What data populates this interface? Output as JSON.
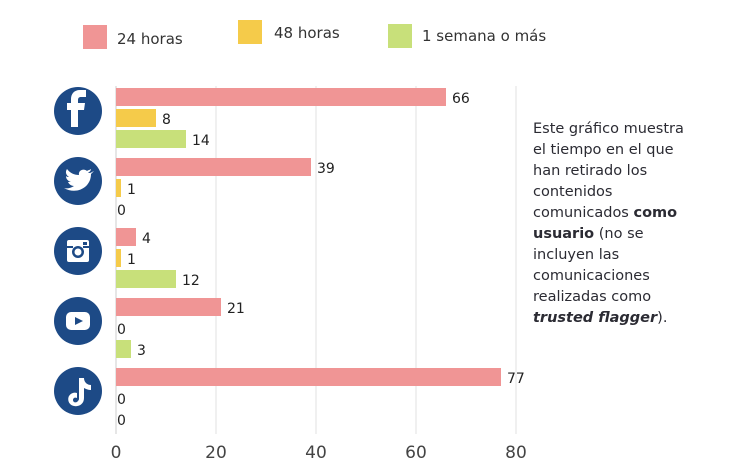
{
  "chart_data": {
    "type": "bar",
    "orientation": "horizontal",
    "categories": [
      "Facebook",
      "Twitter",
      "Instagram",
      "YouTube",
      "TikTok"
    ],
    "category_icons": [
      "facebook-icon",
      "twitter-icon",
      "instagram-icon",
      "youtube-icon",
      "tiktok-icon"
    ],
    "series": [
      {
        "name": "24 horas",
        "color": "#f09595",
        "values": [
          66,
          39,
          4,
          21,
          77
        ]
      },
      {
        "name": "48 horas",
        "color": "#f5cb4a",
        "values": [
          8,
          1,
          1,
          0,
          0
        ]
      },
      {
        "name": "1 semana o más",
        "color": "#c8e07a",
        "values": [
          14,
          0,
          12,
          3,
          0
        ]
      }
    ],
    "xlim": [
      0,
      80
    ],
    "xticks": [
      "0",
      "20",
      "40",
      "60",
      "80"
    ],
    "grid": true,
    "legend": "top",
    "icon_color": "#1d4a86"
  },
  "note": {
    "text_before": "Este gráfico muestra el tiempo en el que han retirado los contenidos comunicados ",
    "bold": "como usuario",
    "text_middle": " (no se incluyen las comunicaciones realizadas como ",
    "bold_italic": "trusted flagger",
    "text_after": ")."
  }
}
